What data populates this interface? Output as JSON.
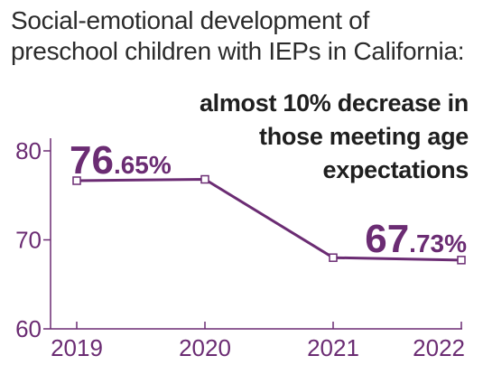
{
  "chart_data": {
    "type": "line",
    "title": "Social-emotional development of preschool children with IEPs in California:",
    "subtitle": "almost 10% decrease in those meeting age expectations",
    "xlabel": "",
    "ylabel": "",
    "categories": [
      "2019",
      "2020",
      "2021",
      "2022"
    ],
    "series": [
      {
        "values": [
          76.65,
          76.8,
          68.0,
          67.73
        ]
      }
    ],
    "ylim": [
      60,
      80
    ],
    "yticks": [
      60,
      70,
      80
    ],
    "grid": false,
    "annotations": [
      {
        "index": 0,
        "whole": "76",
        "fraction": ".65%"
      },
      {
        "index": 3,
        "whole": "67",
        "fraction": ".73%"
      }
    ],
    "colors": {
      "line": "#6b2c73",
      "label": "#6b2c73",
      "axis": "#6b2c73",
      "text": "#2b2b2b"
    }
  }
}
